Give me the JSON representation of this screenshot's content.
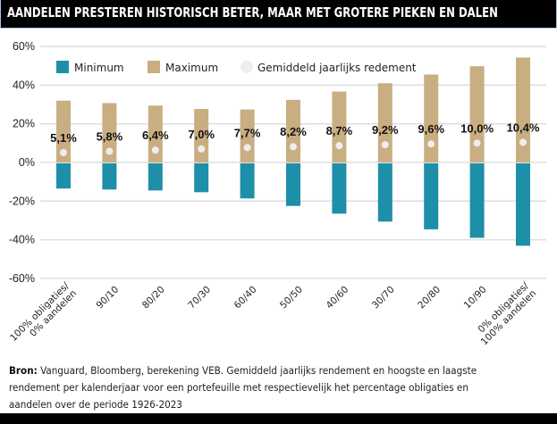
{
  "header": {
    "title": "AANDELEN PRESTEREN HISTORISCH BETER, MAAR MET GROTERE PIEKEN EN DALEN"
  },
  "chart_data": {
    "type": "bar",
    "title": "AANDELEN PRESTEREN HISTORISCH BETER, MAAR MET GROTERE PIEKEN EN DALEN",
    "xlabel": "",
    "ylabel": "",
    "ylim": [
      -60,
      60
    ],
    "yticks": [
      60,
      40,
      20,
      0,
      -20,
      -40,
      -60
    ],
    "ytick_labels": [
      "60%",
      "40%",
      "20%",
      "0%",
      "-20%",
      "-40%",
      "-60%"
    ],
    "grid": true,
    "legend_position": "top-left",
    "categories": [
      [
        "100% obligaties/",
        "0% aandelen"
      ],
      [
        "90/10"
      ],
      [
        "80/20"
      ],
      [
        "70/30"
      ],
      [
        "60/40"
      ],
      [
        "50/50"
      ],
      [
        "40/60"
      ],
      [
        "30/70"
      ],
      [
        "20/80"
      ],
      [
        "10/90"
      ],
      [
        "0% obligaties/",
        "100% aandelen"
      ]
    ],
    "series": [
      {
        "name": "Minimum",
        "color": "#1e8fa8",
        "values": [
          -13.5,
          -14.0,
          -14.5,
          -15.4,
          -18.6,
          -22.5,
          -26.5,
          -30.6,
          -34.6,
          -39.0,
          -43.1
        ]
      },
      {
        "name": "Maximum",
        "color": "#c9ae82",
        "values": [
          32.0,
          30.7,
          29.4,
          27.7,
          27.4,
          32.4,
          36.7,
          41.0,
          45.5,
          49.8,
          54.3
        ]
      },
      {
        "name": "Gemiddeld jaarlijks redement",
        "color": "#eeeeee",
        "values": [
          5.1,
          5.8,
          6.4,
          7.0,
          7.7,
          8.2,
          8.7,
          9.2,
          9.6,
          10.0,
          10.4
        ],
        "labels": [
          "5,1%",
          "5,8%",
          "6,4%",
          "7,0%",
          "7,7%",
          "8,2%",
          "8,7%",
          "9,2%",
          "9,6%",
          "10,0%",
          "10,4%"
        ]
      }
    ]
  },
  "footnote": {
    "bold": "Bron:",
    "lines": [
      " Vanguard, Bloomberg, berekening VEB. Gemiddeld jaarlijks rendement en hoogste en laagste",
      "rendement per kalenderjaar voor een portefeuille met respectievelijk het percentage obligaties en",
      "aandelen over de periode 1926-2023"
    ]
  }
}
